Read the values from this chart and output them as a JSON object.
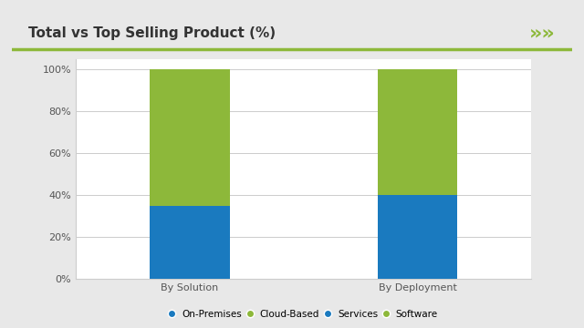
{
  "title": "Total vs Top Selling Product (%)",
  "categories": [
    "By Solution",
    "By Deployment"
  ],
  "segments": [
    {
      "label": "On-Premises",
      "color": "#1a7abf",
      "values": [
        35,
        40
      ]
    },
    {
      "label": "Software",
      "color": "#8db83a",
      "values": [
        65,
        60
      ]
    }
  ],
  "legend_items": [
    {
      "label": "On-Premises",
      "color": "#1a7abf"
    },
    {
      "label": "Cloud-Based",
      "color": "#8db83a"
    },
    {
      "label": "Services",
      "color": "#1a7abf"
    },
    {
      "label": "Software",
      "color": "#8db83a"
    }
  ],
  "yticks": [
    0,
    20,
    40,
    60,
    80,
    100
  ],
  "ytick_labels": [
    "0%",
    "20%",
    "40%",
    "60%",
    "80%",
    "100%"
  ],
  "bar_width": 0.35,
  "bg_color": "#e8e8e8",
  "panel_color": "#ffffff",
  "title_fontsize": 11,
  "tick_fontsize": 8,
  "legend_fontsize": 7.5,
  "header_line_color": "#8db83a",
  "arrow_color": "#8db83a",
  "title_color": "#333333",
  "axis_color": "#cccccc"
}
